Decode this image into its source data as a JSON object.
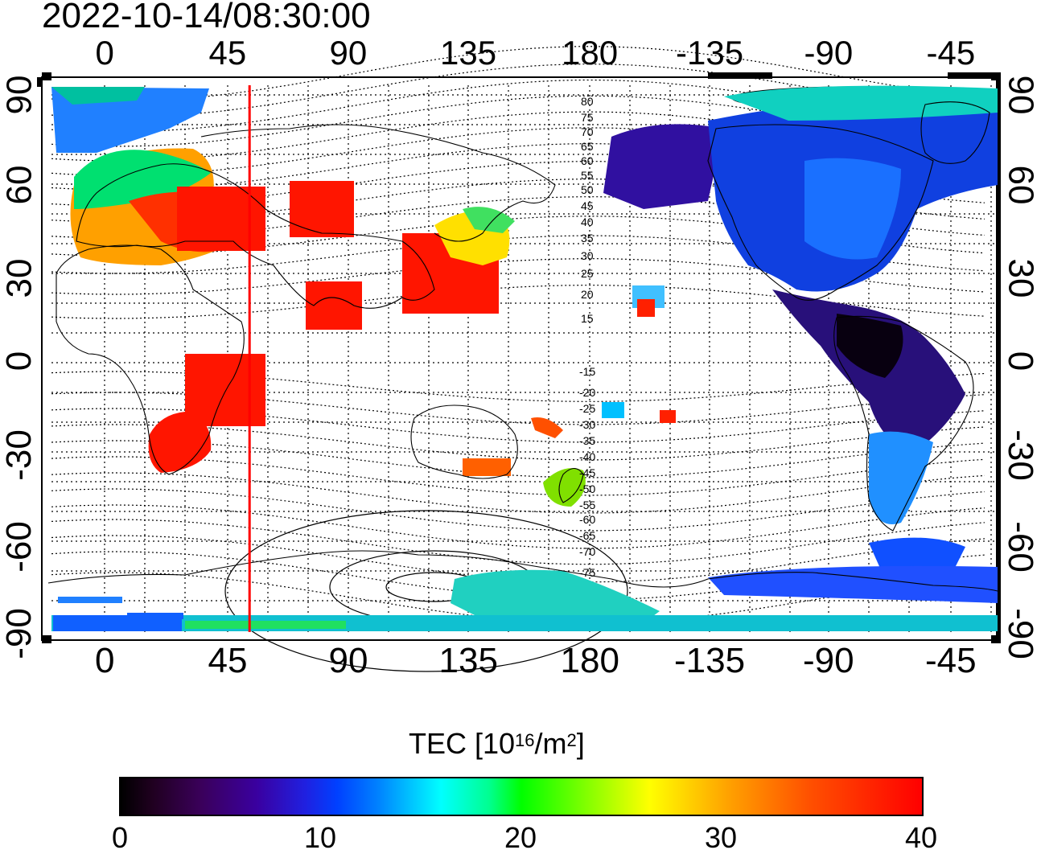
{
  "title": "2022-10-14/08:30:00",
  "map": {
    "lon_top_labels": [
      "0",
      "45",
      "90",
      "135",
      "180",
      "-135",
      "-90",
      "-45"
    ],
    "lon_bottom_labels": [
      "0",
      "45",
      "90",
      "135",
      "180",
      "-135",
      "-90",
      "-45"
    ],
    "lat_left_labels": [
      "90",
      "60",
      "30",
      "0",
      "-30",
      "-60",
      "-90"
    ],
    "lat_right_labels": [
      "90",
      "60",
      "30",
      "0",
      "-30",
      "-60",
      "-90"
    ],
    "contour_labels_north": [
      "80",
      "75",
      "70",
      "65",
      "60",
      "55",
      "50",
      "45",
      "40",
      "35",
      "30",
      "25",
      "20",
      "15"
    ],
    "contour_labels_south": [
      "-15",
      "-20",
      "-25",
      "-30",
      "-35",
      "-40",
      "-45",
      "-50",
      "-55",
      "-60",
      "-65",
      "-70",
      "-75"
    ],
    "marker_longitude": 53,
    "marker_color": "#ff0000"
  },
  "colorbar": {
    "title_main": "TEC  [10",
    "title_exp": "16",
    "title_unit": "/m",
    "title_unit_exp": "2",
    "title_close": "]",
    "min": 0,
    "max": 40,
    "ticks": [
      "0",
      "10",
      "20",
      "30",
      "40"
    ],
    "colors": [
      "#000000",
      "#3a00a0",
      "#0040ff",
      "#00ffff",
      "#00ff00",
      "#ffff00",
      "#ff0000"
    ]
  }
}
